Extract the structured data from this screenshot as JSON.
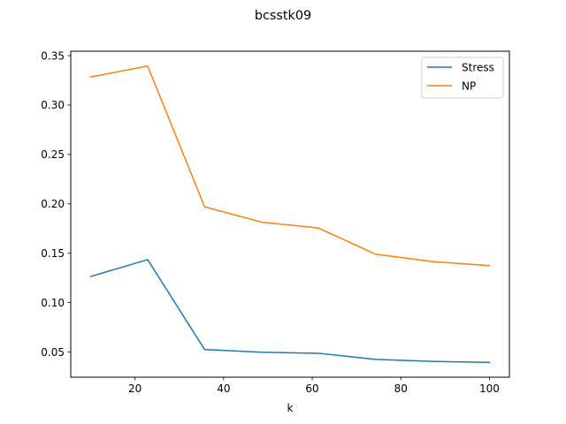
{
  "chart_data": {
    "type": "line",
    "title": "bcsstk09",
    "xlabel": "k",
    "ylabel": "",
    "x": [
      10,
      22.86,
      35.71,
      48.57,
      61.43,
      74.29,
      87.14,
      100
    ],
    "xlim": [
      5.5,
      104.5
    ],
    "ylim": [
      0.0245,
      0.3545
    ],
    "xticks": [
      20,
      40,
      60,
      80,
      100
    ],
    "xtick_labels": [
      "20",
      "40",
      "60",
      "80",
      "100"
    ],
    "yticks": [
      0.05,
      0.1,
      0.15,
      0.2,
      0.25,
      0.3,
      0.35
    ],
    "ytick_labels": [
      "0.05",
      "0.10",
      "0.15",
      "0.20",
      "0.25",
      "0.30",
      "0.35"
    ],
    "grid": false,
    "legend_position": "top-right",
    "series": [
      {
        "name": "Stress",
        "color": "#1f77b4",
        "values": [
          0.1265,
          0.1435,
          0.0525,
          0.0498,
          0.0487,
          0.0425,
          0.0405,
          0.0395
        ]
      },
      {
        "name": "NP",
        "color": "#ff7f0e",
        "values": [
          0.3285,
          0.3395,
          0.197,
          0.1815,
          0.1755,
          0.149,
          0.1415,
          0.1375
        ]
      }
    ]
  }
}
